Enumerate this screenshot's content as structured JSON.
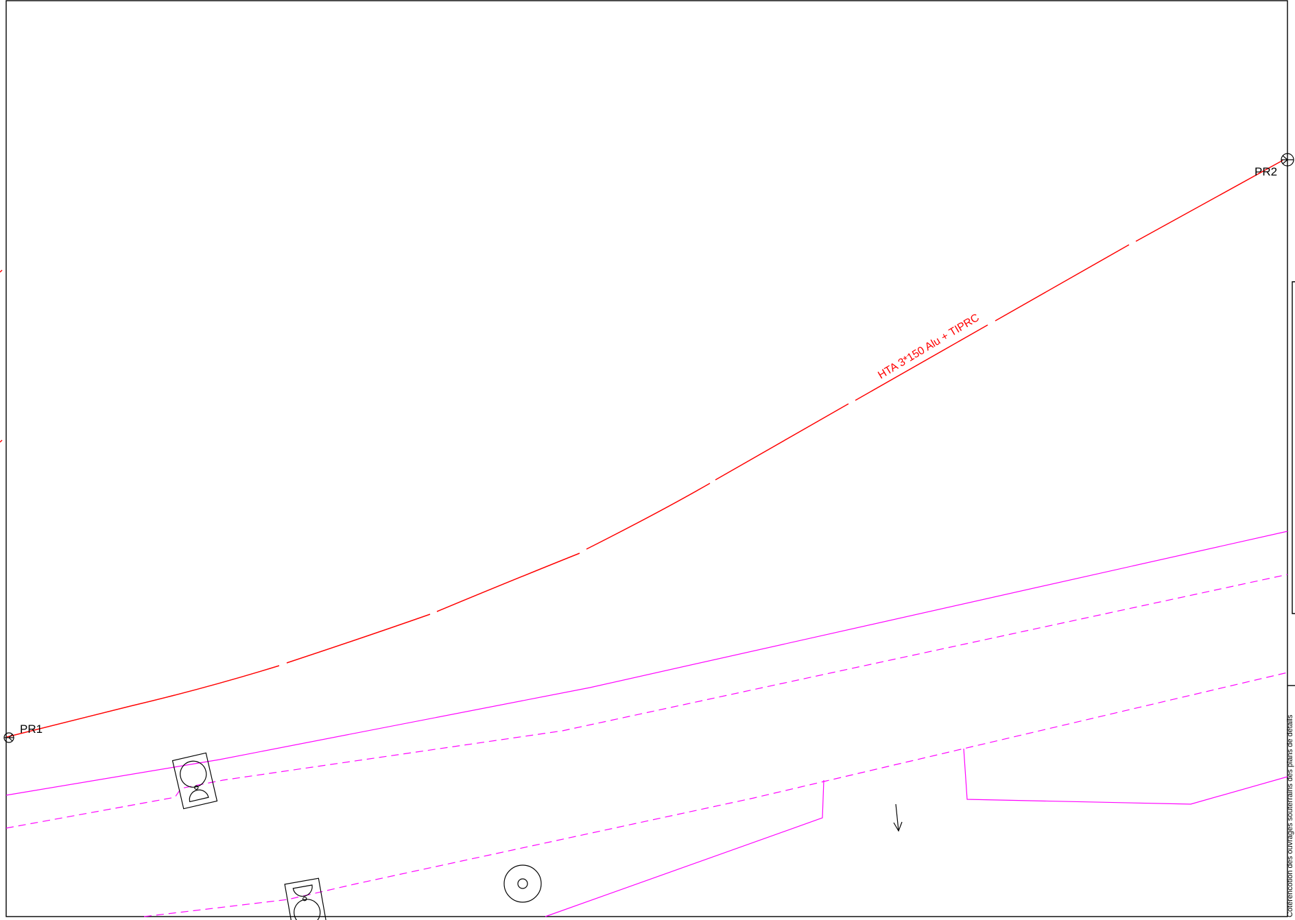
{
  "points": {
    "pr1": "PR1",
    "pr2": "PR2"
  },
  "cable": {
    "label": "HTA 3*150 Alu + TIPRC",
    "color": "#ff0000"
  },
  "roads": {
    "color": "#ff00ff"
  },
  "side_panel": {
    "text": "Cotérencotion des ouvrages souterrains des plans de détails"
  }
}
